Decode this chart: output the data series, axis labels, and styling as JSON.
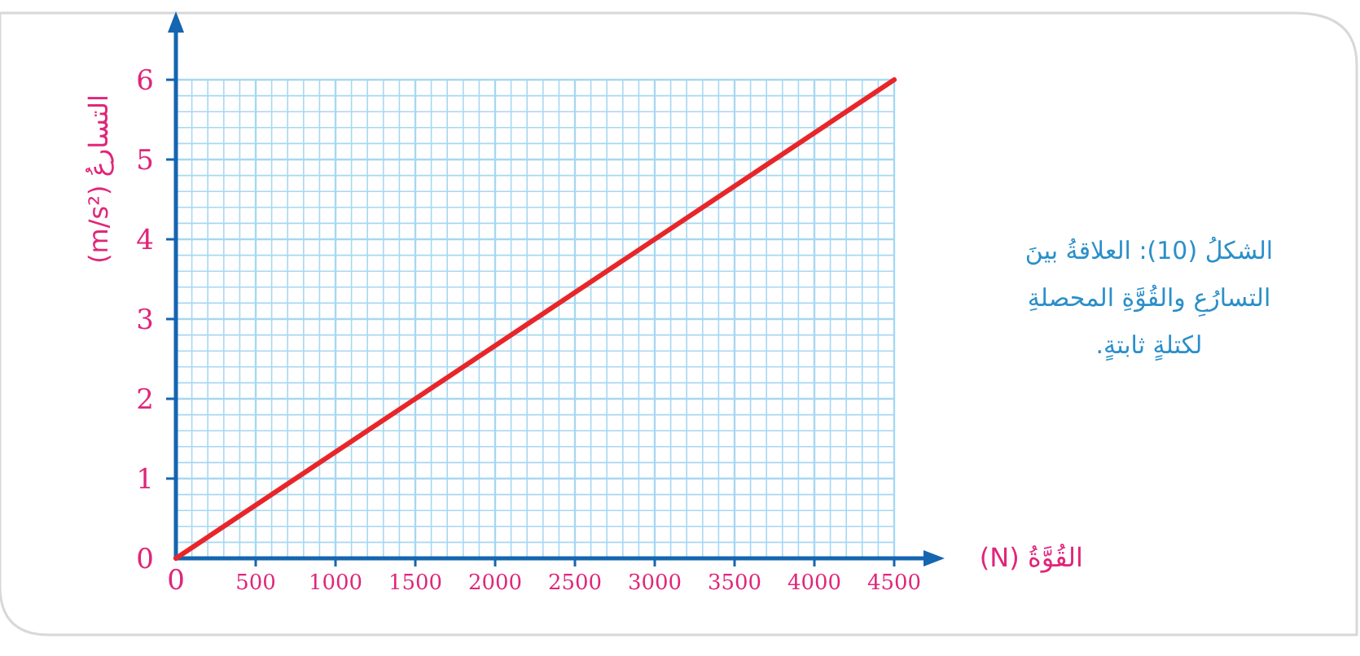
{
  "chart_data": {
    "type": "line",
    "xlabel": "القُوَّةُ (N)",
    "ylabel": "التسارعُ (m/s²)",
    "annotations": [
      "الشكلُ (10): العلاقةُ بينَ التسارُعِ والقُوَّةِ المحصلةِ لكتلةٍ ثابتةٍ."
    ],
    "x": [
      0,
      4500
    ],
    "series": [
      {
        "color": "#e8262a",
        "values": [
          0,
          6
        ]
      }
    ],
    "xlim": [
      0,
      4500
    ],
    "ylim": [
      0,
      6
    ],
    "xticks": [
      0,
      {
        "value": 100,
        "label": null
      },
      {
        "value": 200,
        "label": null
      },
      {
        "value": 300,
        "label": null
      },
      {
        "value": 400,
        "label": null
      },
      500,
      {
        "value": 600,
        "label": null
      },
      {
        "value": 700,
        "label": null
      },
      {
        "value": 800,
        "label": null
      },
      {
        "value": 900,
        "label": null
      },
      1000,
      {
        "value": 1100,
        "label": null
      },
      {
        "value": 1200,
        "label": null
      },
      {
        "value": 1300,
        "label": null
      },
      {
        "value": 1400,
        "label": null
      },
      1500,
      {
        "value": 1600,
        "label": null
      },
      {
        "value": 1700,
        "label": null
      },
      {
        "value": 1800,
        "label": null
      },
      {
        "value": 1900,
        "label": null
      },
      2000,
      {
        "value": 2100,
        "label": null
      },
      {
        "value": 2200,
        "label": null
      },
      {
        "value": 2300,
        "label": null
      },
      {
        "value": 2400,
        "label": null
      },
      2500,
      {
        "value": 2600,
        "label": null
      },
      {
        "value": 2700,
        "label": null
      },
      {
        "value": 2800,
        "label": null
      },
      {
        "value": 2900,
        "label": null
      },
      3000,
      {
        "value": 3100,
        "label": null
      },
      {
        "value": 3200,
        "label": null
      },
      {
        "value": 3300,
        "label": null
      },
      {
        "value": 3400,
        "label": null
      },
      3500,
      {
        "value": 3600,
        "label": null
      },
      {
        "value": 3700,
        "label": null
      },
      {
        "value": 3800,
        "label": null
      },
      {
        "value": 3900,
        "label": null
      },
      4000,
      {
        "value": 4100,
        "label": null
      },
      {
        "value": 4200,
        "label": null
      },
      {
        "value": 4300,
        "label": null
      },
      {
        "value": 4400,
        "label": null
      },
      4500
    ],
    "yticks": [
      0,
      {
        "value": 0.2,
        "label": null
      },
      {
        "value": 0.4,
        "label": null
      },
      {
        "value": 0.6,
        "label": null
      },
      {
        "value": 0.8,
        "label": null
      },
      1,
      {
        "value": 1.2,
        "label": null
      },
      {
        "value": 1.4,
        "label": null
      },
      {
        "value": 1.6,
        "label": null
      },
      {
        "value": 1.8,
        "label": null
      },
      2,
      {
        "value": 2.2,
        "label": null
      },
      {
        "value": 2.4,
        "label": null
      },
      {
        "value": 2.6,
        "label": null
      },
      {
        "value": 2.8,
        "label": null
      },
      3,
      {
        "value": 3.2,
        "label": null
      },
      {
        "value": 3.4,
        "label": null
      },
      {
        "value": 3.6,
        "label": null
      },
      {
        "value": 3.8,
        "label": null
      },
      4,
      {
        "value": 4.2,
        "label": null
      },
      {
        "value": 4.4,
        "label": null
      },
      {
        "value": 4.6,
        "label": null
      },
      {
        "value": 4.8,
        "label": null
      },
      5,
      {
        "value": 5.2,
        "label": null
      },
      {
        "value": 5.4,
        "label": null
      },
      {
        "value": 5.6,
        "label": null
      },
      {
        "value": 5.8,
        "label": null
      },
      6
    ],
    "grid": true,
    "marker": "none",
    "line_style": "solid"
  }
}
